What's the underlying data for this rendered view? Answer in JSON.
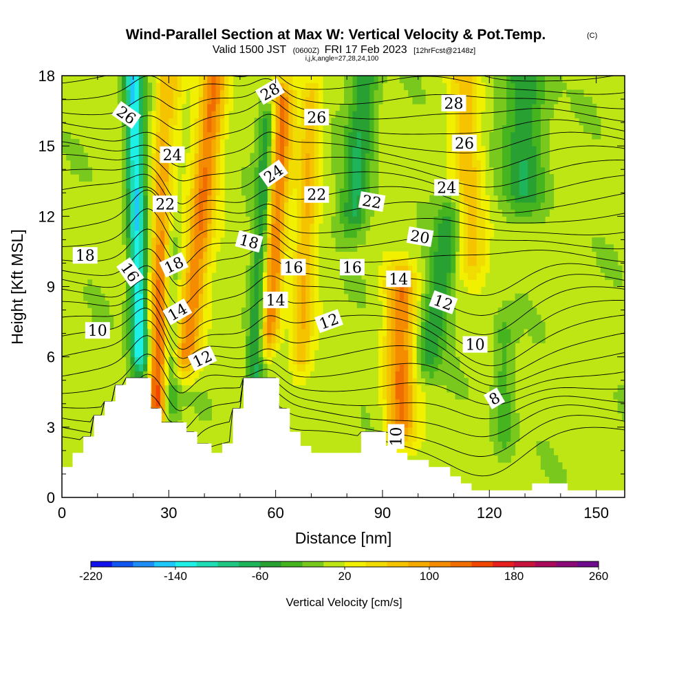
{
  "title": {
    "main": "Wind-Parallel Section at Max W: Vertical Velocity & Pot.Temp.",
    "main_tag": "(C)",
    "valid_prefix": "Valid 1500 JST",
    "valid_utc": "(0600Z)",
    "valid_date": "FRI 17 Feb 2023",
    "forecast_tag": "[12hrFcst@2148z]",
    "indices": "i,j,k,angle=27,28,24,100"
  },
  "chart_data": {
    "type": "contour-section",
    "xlabel": "Distance [nm]",
    "ylabel": "Height [Kft MSL]",
    "xlim": [
      0,
      158
    ],
    "ylim": [
      0,
      18
    ],
    "x_ticks": [
      0,
      30,
      60,
      90,
      120,
      150
    ],
    "y_ticks": [
      0,
      3,
      6,
      9,
      12,
      15,
      18
    ],
    "colorbar": {
      "title": "Vertical Velocity [cm/s]",
      "min": -220,
      "step": 20,
      "tick_values": [
        -220,
        -140,
        -60,
        20,
        100,
        180,
        260
      ],
      "tick_labels": [
        "-220",
        "-140",
        "-60",
        "20",
        "100",
        "180",
        "260"
      ],
      "colors": [
        "#1111ee",
        "#1155f0",
        "#1e8cf5",
        "#1ec8fa",
        "#1ef0e6",
        "#1edcb4",
        "#1ec882",
        "#1eb45a",
        "#28a032",
        "#46b41e",
        "#78c81e",
        "#bee614",
        "#f0f000",
        "#f0dc00",
        "#f5c300",
        "#f5aa00",
        "#f58c00",
        "#f06e00",
        "#f04600",
        "#e61e1e",
        "#c8143c",
        "#aa0a5a",
        "#8c0a78",
        "#6e0a8c"
      ]
    },
    "terrain_kft": [
      [
        0,
        1.3
      ],
      [
        3,
        1.3
      ],
      [
        3,
        1.9
      ],
      [
        6,
        1.9
      ],
      [
        6,
        2.6
      ],
      [
        9,
        2.6
      ],
      [
        9,
        3.5
      ],
      [
        12,
        3.5
      ],
      [
        12,
        4.1
      ],
      [
        15,
        4.1
      ],
      [
        15,
        4.8
      ],
      [
        18,
        4.8
      ],
      [
        18,
        5.1
      ],
      [
        25,
        5.1
      ],
      [
        25,
        3.8
      ],
      [
        28,
        3.8
      ],
      [
        28,
        3.2
      ],
      [
        35,
        3.2
      ],
      [
        35,
        2.8
      ],
      [
        38,
        2.8
      ],
      [
        38,
        2.3
      ],
      [
        42,
        2.3
      ],
      [
        42,
        1.9
      ],
      [
        45,
        1.9
      ],
      [
        45,
        2.3
      ],
      [
        48,
        2.3
      ],
      [
        48,
        3.8
      ],
      [
        51,
        3.8
      ],
      [
        51,
        5.1
      ],
      [
        61,
        5.1
      ],
      [
        61,
        3.8
      ],
      [
        64,
        3.8
      ],
      [
        64,
        2.8
      ],
      [
        67,
        2.8
      ],
      [
        67,
        2.2
      ],
      [
        70,
        2.2
      ],
      [
        70,
        1.9
      ],
      [
        84,
        1.9
      ],
      [
        84,
        2.8
      ],
      [
        91,
        2.8
      ],
      [
        91,
        2.2
      ],
      [
        94,
        2.2
      ],
      [
        94,
        1.9
      ],
      [
        97,
        1.9
      ],
      [
        97,
        1.6
      ],
      [
        103,
        1.6
      ],
      [
        103,
        1.3
      ],
      [
        109,
        1.3
      ],
      [
        109,
        0.9
      ],
      [
        112,
        0.9
      ],
      [
        112,
        0.6
      ],
      [
        115,
        0.6
      ],
      [
        115,
        0.3
      ],
      [
        132,
        0.3
      ],
      [
        132,
        0.6
      ],
      [
        142,
        0.6
      ],
      [
        142,
        0.3
      ],
      [
        158,
        0.3
      ]
    ],
    "field_features": [
      {
        "kind": "updraft",
        "x": 27,
        "width": 3,
        "x_top_offset": 3,
        "y_bottom": 4,
        "y_top": 18,
        "w": 150
      },
      {
        "kind": "updraft",
        "x": 35,
        "width": 3.5,
        "x_top_offset": 8,
        "y_bottom": 6,
        "y_top": 18,
        "w": 110
      },
      {
        "kind": "updraft",
        "x": 58,
        "width": 3,
        "x_top_offset": 4,
        "y_bottom": 7,
        "y_top": 17,
        "w": 120
      },
      {
        "kind": "updraft",
        "x": 67,
        "width": 3,
        "x_top_offset": 3,
        "y_bottom": 6,
        "y_top": 17,
        "w": 70
      },
      {
        "kind": "updraft",
        "x": 95,
        "width": 4,
        "x_top_offset": 0,
        "y_bottom": 3,
        "y_top": 9,
        "w": 110
      },
      {
        "kind": "updraft",
        "x": 115,
        "width": 4,
        "x_top_offset": -2,
        "y_bottom": 10,
        "y_top": 18,
        "w": 60
      },
      {
        "kind": "downdraft",
        "x": 22,
        "width": 2.5,
        "x_top_offset": -2,
        "y_bottom": 6,
        "y_top": 18,
        "w": -150
      },
      {
        "kind": "downdraft",
        "x": 30,
        "width": 2.5,
        "x_top_offset": 0,
        "y_bottom": 4,
        "y_top": 18,
        "w": -80
      },
      {
        "kind": "downdraft",
        "x": 54,
        "width": 2.5,
        "x_top_offset": 4,
        "y_bottom": 5,
        "y_top": 16,
        "w": -80
      },
      {
        "kind": "downdraft",
        "x": 82,
        "width": 4,
        "x_top_offset": 3,
        "y_bottom": 12,
        "y_top": 18,
        "w": -70
      },
      {
        "kind": "downdraft",
        "x": 103,
        "width": 4,
        "x_top_offset": 6,
        "y_bottom": 6,
        "y_top": 12,
        "w": -60
      },
      {
        "kind": "downdraft",
        "x": 130,
        "width": 6,
        "x_top_offset": 0,
        "y_bottom": 13,
        "y_top": 18,
        "w": -65
      },
      {
        "kind": "downdraft",
        "x": 124,
        "width": 3,
        "x_top_offset": 0,
        "y_bottom": 2.5,
        "y_top": 7,
        "w": -40
      }
    ],
    "isentrope_labels": [
      {
        "text": "26",
        "x": 18,
        "y": 16.3,
        "angle": 35
      },
      {
        "text": "24",
        "x": 31,
        "y": 14.6,
        "angle": 0
      },
      {
        "text": "22",
        "x": 29,
        "y": 12.5,
        "angle": 0
      },
      {
        "text": "18",
        "x": 6.5,
        "y": 10.3,
        "angle": 0
      },
      {
        "text": "16",
        "x": 19,
        "y": 9.6,
        "angle": 55
      },
      {
        "text": "18",
        "x": 31.5,
        "y": 9.9,
        "angle": -25
      },
      {
        "text": "14",
        "x": 32.5,
        "y": 7.9,
        "angle": -30
      },
      {
        "text": "12",
        "x": 39.5,
        "y": 5.9,
        "angle": -25
      },
      {
        "text": "10",
        "x": 10,
        "y": 7.1,
        "angle": 0
      },
      {
        "text": "28",
        "x": 58.5,
        "y": 17.3,
        "angle": -30
      },
      {
        "text": "26",
        "x": 71.5,
        "y": 16.2,
        "angle": 0
      },
      {
        "text": "24",
        "x": 59.5,
        "y": 13.8,
        "angle": -35
      },
      {
        "text": "22",
        "x": 71.5,
        "y": 12.9,
        "angle": 0
      },
      {
        "text": "22",
        "x": 87,
        "y": 12.6,
        "angle": 10
      },
      {
        "text": "18",
        "x": 52.5,
        "y": 10.9,
        "angle": 15
      },
      {
        "text": "16",
        "x": 65,
        "y": 9.8,
        "angle": 0
      },
      {
        "text": "16",
        "x": 81.5,
        "y": 9.8,
        "angle": 0
      },
      {
        "text": "14",
        "x": 60,
        "y": 8.4,
        "angle": 0
      },
      {
        "text": "14",
        "x": 94.5,
        "y": 9.3,
        "angle": 0
      },
      {
        "text": "12",
        "x": 75,
        "y": 7.5,
        "angle": -20
      },
      {
        "text": "20",
        "x": 100.5,
        "y": 11.1,
        "angle": 10
      },
      {
        "text": "12",
        "x": 107,
        "y": 8.3,
        "angle": 20
      },
      {
        "text": "10",
        "x": 116,
        "y": 6.5,
        "angle": 0
      },
      {
        "text": "8",
        "x": 121.5,
        "y": 4.2,
        "angle": -30
      },
      {
        "text": "10",
        "x": 94,
        "y": 2.6,
        "angle": -90
      },
      {
        "text": "28",
        "x": 110,
        "y": 16.8,
        "angle": 0
      },
      {
        "text": "26",
        "x": 113,
        "y": 15.1,
        "angle": 0
      },
      {
        "text": "24",
        "x": 108,
        "y": 13.2,
        "angle": 0
      }
    ]
  }
}
